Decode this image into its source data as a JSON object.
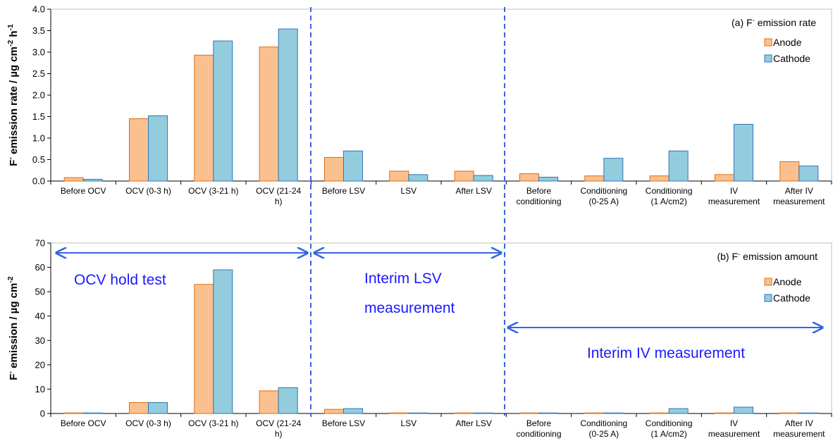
{
  "chart_data": [
    {
      "type": "bar",
      "title": "(a) F- emission rate",
      "ylabel": "F- emission rate / µg cm-2 h-1",
      "ylim": [
        0,
        4.0
      ],
      "yticks": [
        "0.0",
        "0.5",
        "1.0",
        "1.5",
        "2.0",
        "2.5",
        "3.0",
        "3.5",
        "4.0"
      ],
      "legend_position": "top-right",
      "categories": [
        [
          "Before OCV"
        ],
        [
          "OCV (0-3 h)"
        ],
        [
          "OCV (3-21 h)"
        ],
        [
          "OCV (21-24",
          "h)"
        ],
        [
          "Before LSV"
        ],
        [
          "LSV"
        ],
        [
          "After LSV"
        ],
        [
          "Before",
          "conditioning"
        ],
        [
          "Conditioning",
          "(0-25 A)"
        ],
        [
          "Conditioning",
          "(1 A/cm2)"
        ],
        [
          "IV",
          "measurement"
        ],
        [
          "After IV",
          "measurement"
        ]
      ],
      "series": [
        {
          "name": "Anode",
          "color": "#fac090",
          "stroke": "#e46c0a",
          "values": [
            0.08,
            1.45,
            2.93,
            3.12,
            0.55,
            0.23,
            0.23,
            0.17,
            0.12,
            0.12,
            0.15,
            0.45
          ]
        },
        {
          "name": "Cathode",
          "color": "#93cddd",
          "stroke": "#2e75b6",
          "values": [
            0.04,
            1.52,
            3.26,
            3.54,
            0.7,
            0.15,
            0.13,
            0.09,
            0.53,
            0.7,
            1.32,
            0.35
          ]
        }
      ]
    },
    {
      "type": "bar",
      "title": "(b) F- emission amount",
      "ylabel": "F- emission / µg cm-2",
      "ylim": [
        0,
        70
      ],
      "yticks": [
        "0",
        "10",
        "20",
        "30",
        "40",
        "50",
        "60",
        "70"
      ],
      "legend_position": "right",
      "categories": [
        [
          "Before OCV"
        ],
        [
          "OCV (0-3 h)"
        ],
        [
          "OCV (3-21 h)"
        ],
        [
          "OCV (21-24",
          "h)"
        ],
        [
          "Before LSV"
        ],
        [
          "LSV"
        ],
        [
          "After LSV"
        ],
        [
          "Before",
          "conditioning"
        ],
        [
          "Conditioning",
          "(0-25 A)"
        ],
        [
          "Conditioning",
          "(1 A/cm2)"
        ],
        [
          "IV",
          "measurement"
        ],
        [
          "After IV",
          "measurement"
        ]
      ],
      "series": [
        {
          "name": "Anode",
          "color": "#fac090",
          "stroke": "#e46c0a",
          "values": [
            0.2,
            4.5,
            53,
            9.3,
            1.7,
            0.2,
            0.2,
            0.2,
            0.1,
            0.1,
            0.1,
            0.1
          ]
        },
        {
          "name": "Cathode",
          "color": "#93cddd",
          "stroke": "#2e75b6",
          "values": [
            0.1,
            4.5,
            59,
            10.6,
            2.0,
            0.2,
            0.2,
            0.2,
            0.2,
            2.0,
            2.6,
            0.2
          ]
        }
      ],
      "annotations": [
        "OCV hold test",
        "Interim LSV",
        "measurement",
        "Interim IV measurement"
      ]
    }
  ]
}
